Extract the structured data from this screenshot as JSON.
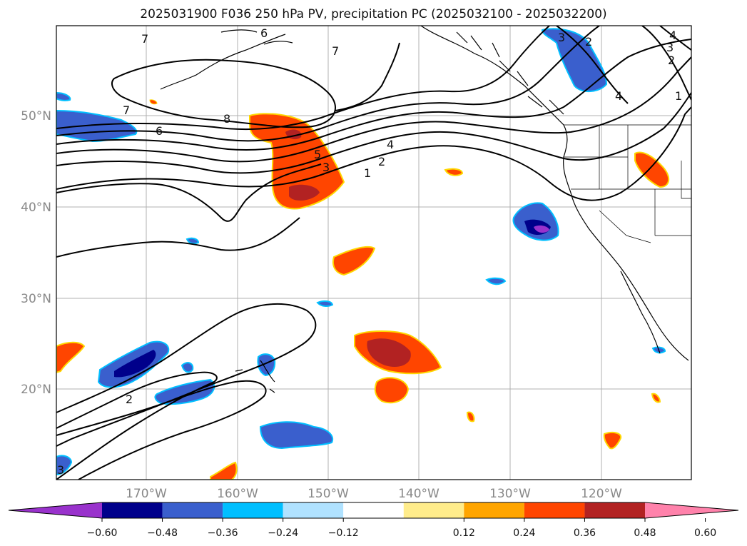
{
  "title": "2025031900 F036 250 hPa PV, precipitation PC (2025032100 - 2025032200)",
  "map": {
    "lat_labels": [
      "50°N",
      "40°N",
      "30°N",
      "20°N"
    ],
    "lon_labels": [
      "170°W",
      "160°W",
      "150°W",
      "140°W",
      "130°W",
      "120°W"
    ],
    "contour_labels": [
      "7",
      "6",
      "7",
      "4",
      "3",
      "2",
      "2",
      "3",
      "1",
      "4",
      "7",
      "8",
      "6",
      "5",
      "3",
      "1",
      "2",
      "4",
      "2",
      "3"
    ]
  },
  "colorbar": {
    "tick_labels": [
      "−0.60",
      "−0.48",
      "−0.36",
      "−0.24",
      "−0.12",
      "0.12",
      "0.24",
      "0.36",
      "0.48",
      "0.60"
    ],
    "colors": [
      "#9932cc",
      "#00008b",
      "#3a5fcd",
      "#00bfff",
      "#b0e2ff",
      "#ffffff",
      "#ffec8b",
      "#ffa500",
      "#ff4500",
      "#b22222",
      "#ff82ab"
    ]
  }
}
